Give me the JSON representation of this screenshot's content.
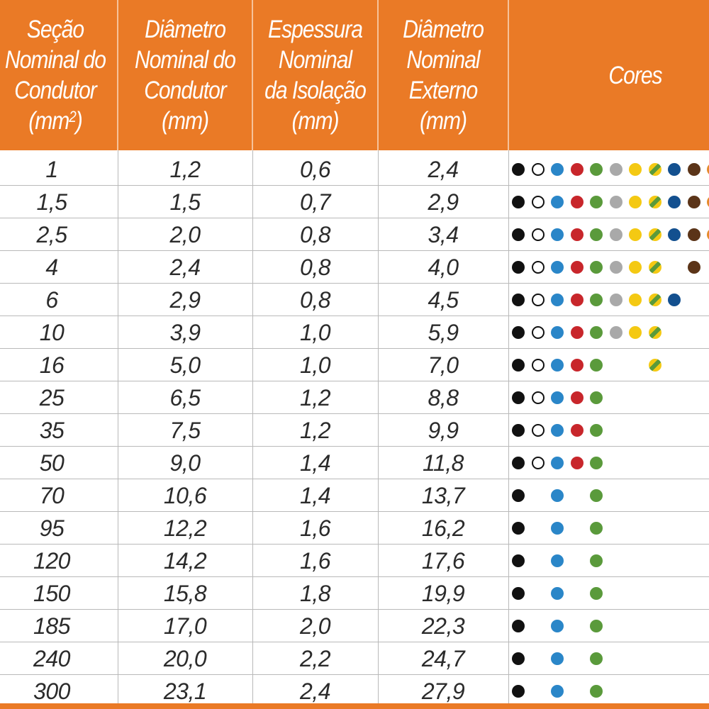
{
  "header": {
    "col1": [
      "Seção",
      "Nominal do",
      "Condutor",
      "(mm2)"
    ],
    "col2": [
      "Diâmetro",
      "Nominal do",
      "Condutor",
      "(mm)"
    ],
    "col3": [
      "Espessura",
      "Nominal",
      "da Isolação",
      "(mm)"
    ],
    "col4": [
      "Diâmetro",
      "Nominal",
      "Externo",
      "(mm)"
    ],
    "col5": "Cores"
  },
  "colors": {
    "header_bg": "#ea7a26",
    "preto": "#111111",
    "branco": "#ffffff",
    "azul": "#2a86c8",
    "vermelho": "#c8262b",
    "verde": "#5a9a3b",
    "cinza": "#a9a9a9",
    "amarelo": "#f4c913",
    "azul_escuro": "#13508f",
    "marrom": "#5b3418",
    "laranja": "#e58a2b"
  },
  "rows": [
    {
      "secao": "1",
      "diam_condutor": "1,2",
      "espessura": "0,6",
      "diam_externo": "2,4",
      "cores": [
        "preto",
        "branco",
        "azul",
        "vermelho",
        "verde",
        "cinza",
        "amarelo",
        "verde-amarelo",
        "azul-escuro",
        "marrom",
        "laranja"
      ]
    },
    {
      "secao": "1,5",
      "diam_condutor": "1,5",
      "espessura": "0,7",
      "diam_externo": "2,9",
      "cores": [
        "preto",
        "branco",
        "azul",
        "vermelho",
        "verde",
        "cinza",
        "amarelo",
        "verde-amarelo",
        "azul-escuro",
        "marrom",
        "laranja"
      ]
    },
    {
      "secao": "2,5",
      "diam_condutor": "2,0",
      "espessura": "0,8",
      "diam_externo": "3,4",
      "cores": [
        "preto",
        "branco",
        "azul",
        "vermelho",
        "verde",
        "cinza",
        "amarelo",
        "verde-amarelo",
        "azul-escuro",
        "marrom",
        "laranja"
      ]
    },
    {
      "secao": "4",
      "diam_condutor": "2,4",
      "espessura": "0,8",
      "diam_externo": "4,0",
      "cores": [
        "preto",
        "branco",
        "azul",
        "vermelho",
        "verde",
        "cinza",
        "amarelo",
        "verde-amarelo",
        "",
        "marrom"
      ]
    },
    {
      "secao": "6",
      "diam_condutor": "2,9",
      "espessura": "0,8",
      "diam_externo": "4,5",
      "cores": [
        "preto",
        "branco",
        "azul",
        "vermelho",
        "verde",
        "cinza",
        "amarelo",
        "verde-amarelo",
        "azul-escuro"
      ]
    },
    {
      "secao": "10",
      "diam_condutor": "3,9",
      "espessura": "1,0",
      "diam_externo": "5,9",
      "cores": [
        "preto",
        "branco",
        "azul",
        "vermelho",
        "verde",
        "cinza",
        "amarelo",
        "verde-amarelo"
      ]
    },
    {
      "secao": "16",
      "diam_condutor": "5,0",
      "espessura": "1,0",
      "diam_externo": "7,0",
      "cores": [
        "preto",
        "branco",
        "azul",
        "vermelho",
        "verde",
        "",
        "",
        "verde-amarelo"
      ]
    },
    {
      "secao": "25",
      "diam_condutor": "6,5",
      "espessura": "1,2",
      "diam_externo": "8,8",
      "cores": [
        "preto",
        "branco",
        "azul",
        "vermelho",
        "verde"
      ]
    },
    {
      "secao": "35",
      "diam_condutor": "7,5",
      "espessura": "1,2",
      "diam_externo": "9,9",
      "cores": [
        "preto",
        "branco",
        "azul",
        "vermelho",
        "verde"
      ]
    },
    {
      "secao": "50",
      "diam_condutor": "9,0",
      "espessura": "1,4",
      "diam_externo": "11,8",
      "cores": [
        "preto",
        "branco",
        "azul",
        "vermelho",
        "verde"
      ]
    },
    {
      "secao": "70",
      "diam_condutor": "10,6",
      "espessura": "1,4",
      "diam_externo": "13,7",
      "cores": [
        "preto",
        "",
        "azul",
        "",
        "verde"
      ]
    },
    {
      "secao": "95",
      "diam_condutor": "12,2",
      "espessura": "1,6",
      "diam_externo": "16,2",
      "cores": [
        "preto",
        "",
        "azul",
        "",
        "verde"
      ]
    },
    {
      "secao": "120",
      "diam_condutor": "14,2",
      "espessura": "1,6",
      "diam_externo": "17,6",
      "cores": [
        "preto",
        "",
        "azul",
        "",
        "verde"
      ]
    },
    {
      "secao": "150",
      "diam_condutor": "15,8",
      "espessura": "1,8",
      "diam_externo": "19,9",
      "cores": [
        "preto",
        "",
        "azul",
        "",
        "verde"
      ]
    },
    {
      "secao": "185",
      "diam_condutor": "17,0",
      "espessura": "2,0",
      "diam_externo": "22,3",
      "cores": [
        "preto",
        "",
        "azul",
        "",
        "verde"
      ]
    },
    {
      "secao": "240",
      "diam_condutor": "20,0",
      "espessura": "2,2",
      "diam_externo": "24,7",
      "cores": [
        "preto",
        "",
        "azul",
        "",
        "verde"
      ]
    },
    {
      "secao": "300",
      "diam_condutor": "23,1",
      "espessura": "2,4",
      "diam_externo": "27,9",
      "cores": [
        "preto",
        "",
        "azul",
        "",
        "verde"
      ]
    }
  ]
}
